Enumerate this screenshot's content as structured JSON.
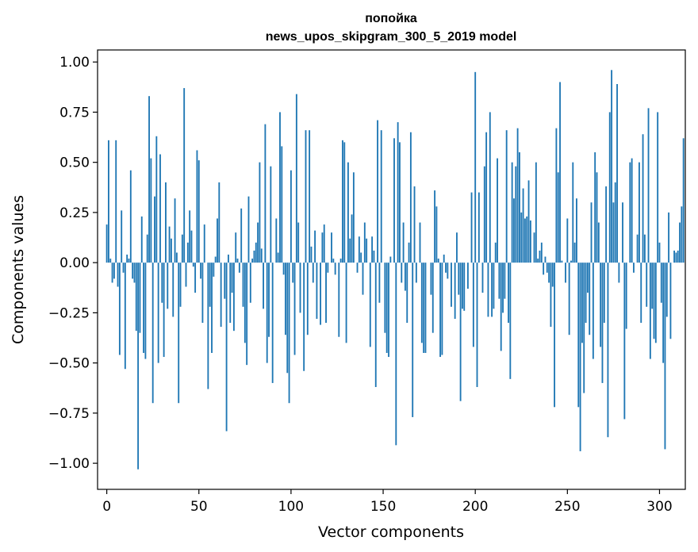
{
  "chart_data": {
    "type": "bar",
    "title": "попойка",
    "subtitle": "news_upos_skipgram_300_5_2019 model",
    "xlabel": "Vector components",
    "ylabel": "Components values",
    "xlim": [
      -5,
      314
    ],
    "ylim": [
      -1.13,
      1.06
    ],
    "x_ticks": [
      0,
      50,
      100,
      150,
      200,
      250,
      300
    ],
    "x_tick_labels": [
      "0",
      "50",
      "100",
      "150",
      "200",
      "250",
      "300"
    ],
    "y_ticks": [
      1.0,
      0.75,
      0.5,
      0.25,
      0.0,
      -0.25,
      -0.5,
      -0.75,
      -1.0
    ],
    "y_tick_labels": [
      "1.00",
      "0.75",
      "0.50",
      "0.25",
      "0.00",
      "−0.25",
      "−0.50",
      "−0.75",
      "−1.00"
    ],
    "bar_color": "#1f77b4",
    "values": [
      0.19,
      0.61,
      0.02,
      -0.1,
      -0.08,
      0.61,
      -0.12,
      -0.46,
      0.26,
      -0.05,
      -0.53,
      0.04,
      0.02,
      0.46,
      -0.08,
      -0.1,
      -0.34,
      -1.03,
      -0.35,
      0.23,
      -0.45,
      -0.48,
      0.14,
      0.83,
      0.52,
      -0.7,
      0.33,
      0.63,
      -0.5,
      0.54,
      -0.2,
      -0.47,
      0.4,
      -0.23,
      0.18,
      0.12,
      -0.27,
      0.32,
      0.05,
      -0.7,
      -0.22,
      0.14,
      0.87,
      -0.12,
      0.1,
      0.26,
      0.16,
      -0.02,
      -0.15,
      0.56,
      0.51,
      -0.08,
      -0.3,
      0.19,
      0.0,
      -0.63,
      -0.22,
      -0.45,
      -0.07,
      0.03,
      0.22,
      0.4,
      -0.32,
      0.0,
      -0.18,
      -0.84,
      0.04,
      -0.3,
      -0.15,
      -0.34,
      0.15,
      0.02,
      -0.05,
      0.27,
      -0.22,
      -0.4,
      -0.51,
      0.33,
      -0.2,
      0.02,
      0.06,
      0.1,
      0.2,
      0.5,
      0.07,
      -0.23,
      0.69,
      -0.5,
      -0.37,
      0.48,
      -0.6,
      0.0,
      0.22,
      0.05,
      0.75,
      0.58,
      -0.06,
      -0.36,
      -0.55,
      -0.7,
      0.46,
      -0.1,
      -0.46,
      0.84,
      0.2,
      -0.25,
      0.0,
      -0.54,
      0.66,
      -0.36,
      0.66,
      0.08,
      -0.1,
      0.16,
      -0.28,
      0.0,
      -0.31,
      0.15,
      0.19,
      -0.3,
      -0.05,
      0.0,
      0.15,
      0.02,
      -0.06,
      0.0,
      -0.37,
      0.02,
      0.61,
      0.6,
      -0.4,
      0.5,
      0.12,
      0.24,
      0.45,
      0.0,
      -0.05,
      0.13,
      0.05,
      -0.16,
      0.2,
      0.12,
      0.0,
      -0.42,
      0.13,
      0.06,
      -0.62,
      0.71,
      -0.2,
      0.66,
      0.0,
      -0.35,
      -0.45,
      -0.47,
      0.03,
      0.0,
      0.62,
      -0.91,
      0.7,
      0.6,
      -0.1,
      0.2,
      -0.14,
      -0.3,
      0.1,
      0.65,
      -0.77,
      0.38,
      -0.1,
      0.0,
      0.2,
      -0.4,
      -0.45,
      -0.45,
      0.0,
      0.0,
      -0.16,
      -0.35,
      0.36,
      0.28,
      0.02,
      -0.47,
      -0.46,
      0.04,
      -0.05,
      -0.08,
      0.0,
      -0.22,
      0.0,
      -0.28,
      0.15,
      -0.16,
      -0.69,
      -0.23,
      -0.24,
      0.0,
      -0.13,
      0.0,
      0.35,
      -0.42,
      0.95,
      -0.62,
      0.35,
      0.0,
      -0.15,
      0.48,
      0.65,
      -0.27,
      0.75,
      -0.27,
      -0.23,
      0.1,
      0.52,
      -0.18,
      -0.44,
      -0.25,
      -0.18,
      0.66,
      -0.3,
      -0.58,
      0.5,
      0.32,
      0.48,
      0.67,
      0.55,
      0.25,
      0.37,
      0.22,
      0.23,
      0.41,
      0.21,
      0.0,
      0.15,
      0.5,
      0.02,
      0.06,
      0.1,
      -0.06,
      0.03,
      -0.05,
      -0.1,
      -0.32,
      -0.12,
      -0.72,
      0.67,
      0.45,
      0.9,
      0.01,
      0.0,
      -0.1,
      0.22,
      -0.36,
      0.01,
      0.5,
      0.1,
      0.32,
      -0.72,
      -0.94,
      -0.4,
      -0.65,
      -0.3,
      -0.15,
      -0.36,
      0.3,
      -0.48,
      0.55,
      0.45,
      0.2,
      -0.42,
      -0.6,
      -0.3,
      0.38,
      -0.87,
      0.75,
      0.96,
      0.3,
      0.4,
      0.89,
      -0.1,
      0.0,
      0.3,
      -0.78,
      -0.33,
      0.0,
      0.5,
      0.52,
      -0.05,
      0.0,
      0.14,
      0.5,
      -0.3,
      0.64,
      0.14,
      -0.22,
      0.77,
      -0.48,
      -0.23,
      -0.38,
      -0.4,
      0.75,
      0.1,
      -0.2,
      -0.5,
      -0.93,
      -0.27,
      0.25,
      -0.38,
      0.0,
      0.06,
      0.05,
      0.06,
      0.2,
      0.28,
      0.62
    ]
  }
}
